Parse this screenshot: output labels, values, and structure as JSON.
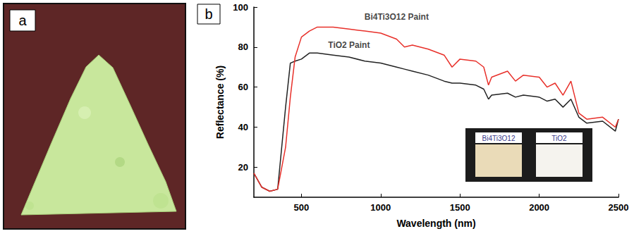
{
  "chart_data": {
    "type": "line",
    "panel_labels": [
      "a",
      "b"
    ],
    "x_label": "Wavelength (nm)",
    "y_label": "Reflectance (%)",
    "x": [
      200,
      250,
      300,
      350,
      400,
      430,
      460,
      500,
      550,
      600,
      700,
      800,
      900,
      1000,
      1100,
      1150,
      1200,
      1300,
      1400,
      1450,
      1500,
      1600,
      1650,
      1680,
      1700,
      1800,
      1850,
      1900,
      2000,
      2050,
      2100,
      2150,
      2200,
      2250,
      2300,
      2400,
      2480,
      2500
    ],
    "series": [
      {
        "name": "TiO2 Paint",
        "color": "#222222",
        "values": [
          17,
          10,
          8,
          9,
          50,
          72,
          73,
          74,
          77,
          77,
          76,
          75,
          73,
          72,
          70,
          69,
          68,
          66,
          63,
          62,
          62,
          61,
          59,
          54,
          56,
          57,
          55,
          56,
          55,
          53,
          54,
          50,
          54,
          45,
          42,
          43,
          38,
          44
        ]
      },
      {
        "name": "Bi4Ti3O12 Paint",
        "color": "#e8302a",
        "values": [
          17,
          10,
          8,
          9,
          30,
          55,
          75,
          85,
          88,
          90,
          90,
          89,
          88,
          87,
          84,
          80,
          81,
          79,
          76,
          70,
          74,
          73,
          70,
          61,
          65,
          68,
          63,
          66,
          65,
          60,
          62,
          56,
          63,
          47,
          44,
          45,
          40,
          44
        ]
      }
    ],
    "annotations": [
      {
        "text": "Bi4Ti3O12 Paint",
        "x": 1100,
        "y": 95
      },
      {
        "text": "TiO2 Paint",
        "x": 800,
        "y": 81
      }
    ],
    "inset_labels": [
      "Bi4Ti3O12",
      "TiO2"
    ],
    "xlim": [
      200,
      2500
    ],
    "xticks": [
      500,
      1000,
      1500,
      2000,
      2500
    ],
    "ylim": [
      5,
      100
    ],
    "yticks": [
      20,
      40,
      60,
      80,
      100
    ],
    "grid": false
  }
}
